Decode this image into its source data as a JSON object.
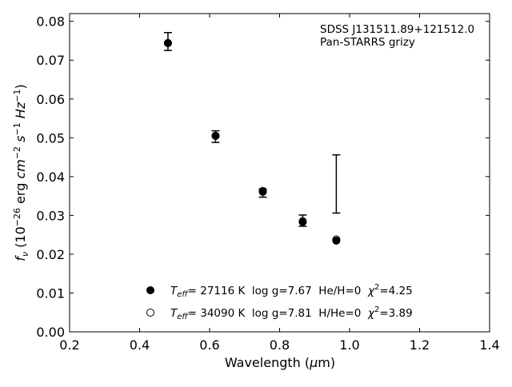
{
  "chart_data": {
    "type": "scatter",
    "title": "",
    "xlabel": "Wavelength (μm)",
    "ylabel": "f_ν (10^-26 erg cm^-2 s^-1 Hz^-1)",
    "xlim": [
      0.2,
      1.4
    ],
    "ylim": [
      0.0,
      0.082
    ],
    "xticks": [
      0.2,
      0.4,
      0.6,
      0.8,
      1.0,
      1.2,
      1.4
    ],
    "xtick_labels": [
      "0.2",
      "0.4",
      "0.6",
      "0.8",
      "1.0",
      "1.2",
      "1.4"
    ],
    "yticks": [
      0.0,
      0.01,
      0.02,
      0.03,
      0.04,
      0.05,
      0.06,
      0.07,
      0.08
    ],
    "ytick_labels": [
      "0.00",
      "0.01",
      "0.02",
      "0.03",
      "0.04",
      "0.05",
      "0.06",
      "0.07",
      "0.08"
    ],
    "grid": false,
    "annotation": {
      "lines": [
        "SDSS J131511.89+121512.0",
        "Pan-STARRS grizy"
      ],
      "placement": "top-right"
    },
    "observed": {
      "x": [
        0.481,
        0.617,
        0.752,
        0.866,
        0.962
      ],
      "y": [
        0.0748,
        0.0503,
        0.0361,
        0.0286,
        0.038
      ],
      "yerr_low": [
        0.0725,
        0.0488,
        0.0347,
        0.0272,
        0.0306
      ],
      "yerr_high": [
        0.0771,
        0.0518,
        0.0368,
        0.0301,
        0.0456
      ],
      "hidden_marker": [
        false,
        false,
        false,
        false,
        true
      ]
    },
    "series": [
      {
        "marker": "filled-circle",
        "x": [
          0.481,
          0.617,
          0.752,
          0.866,
          0.962
        ],
        "y": [
          0.0744,
          0.0505,
          0.0361,
          0.0283,
          0.0235
        ]
      },
      {
        "marker": "open-circle",
        "x": [
          0.481,
          0.617,
          0.752,
          0.866,
          0.962
        ],
        "y": [
          0.0744,
          0.0505,
          0.0363,
          0.0285,
          0.0238
        ]
      }
    ],
    "legend": {
      "placement": "lower-center",
      "entries": [
        {
          "marker": "filled-circle",
          "teff_label": "T",
          "teff_sub": "eff",
          "teff_text": "= 27116 K  log g=7.67  He/H=0  ",
          "chi_label": "χ",
          "chi_sup": "2",
          "chi_text": "=4.25"
        },
        {
          "marker": "open-circle",
          "teff_label": "T",
          "teff_sub": "eff",
          "teff_text": "= 34090 K  log g=7.81  H/He=0  ",
          "chi_label": "χ",
          "chi_sup": "2",
          "chi_text": "=3.89"
        }
      ]
    }
  }
}
